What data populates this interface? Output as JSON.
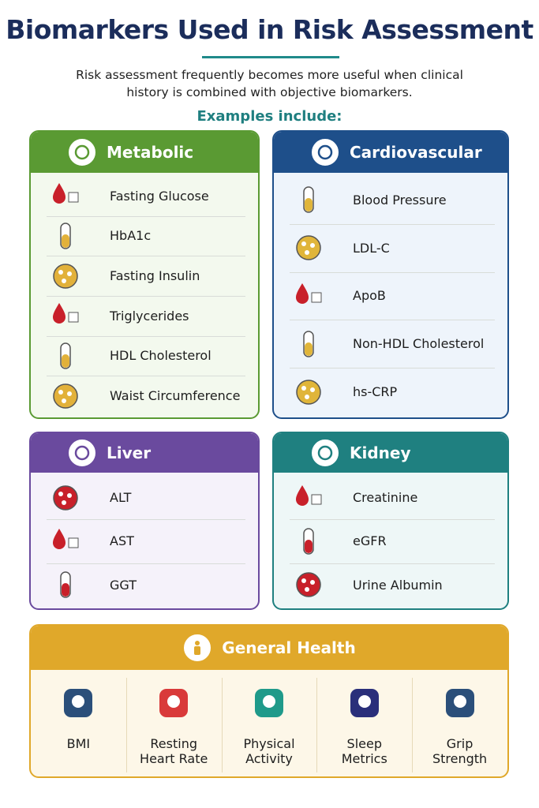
{
  "header": {
    "title": "Biomarkers Used in Risk Assessment",
    "subtitle": "Risk assessment frequently becomes more useful when clinical history is combined with objective biomarkers.",
    "examples_label": "Examples include:"
  },
  "panels": [
    {
      "title": "Metabolic",
      "items": [
        "Fasting Glucose",
        "HbA1c",
        "Fasting Insulin",
        "Triglycerides",
        "HDL Cholesterol",
        "Waist Circumference"
      ]
    },
    {
      "title": "Cardiovascular",
      "items": [
        "Blood Pressure",
        "LDL-C",
        "ApoB",
        "Non-HDL Cholesterol",
        "hs-CRP"
      ]
    },
    {
      "title": "Liver",
      "items": [
        "ALT",
        "AST",
        "GGT"
      ]
    },
    {
      "title": "Kidney",
      "items": [
        "Creatinine",
        "eGFR",
        "Urine Albumin"
      ]
    }
  ],
  "general": {
    "title": "General Health",
    "items": [
      "BMI",
      "Resting Heart Rate",
      "Physical Activity",
      "Sleep Metrics",
      "Grip Strength"
    ]
  }
}
